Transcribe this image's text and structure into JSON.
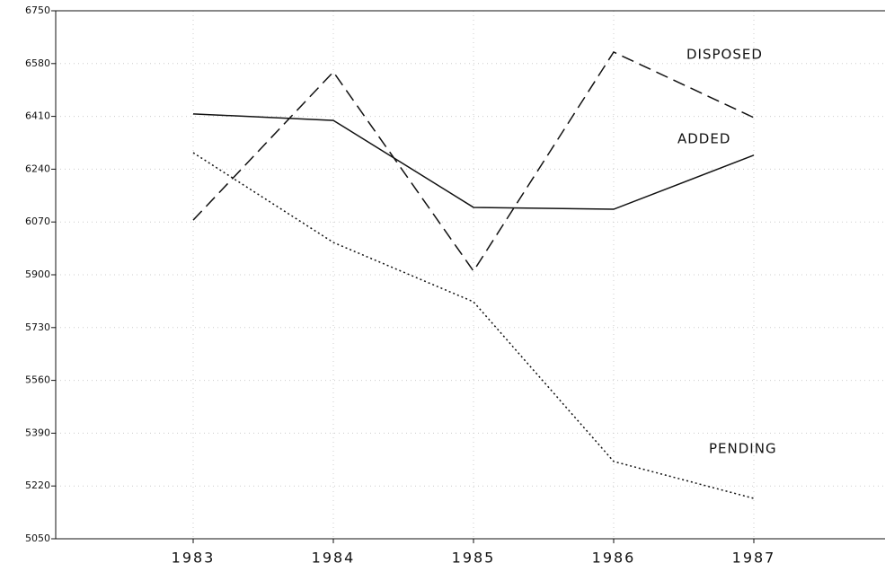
{
  "chart_data": {
    "type": "line",
    "categories": [
      "1983",
      "1984",
      "1985",
      "1986",
      "1987"
    ],
    "series": [
      {
        "name": "DISPOSED",
        "color": "#111111",
        "style": "dashed",
        "values": [
          6076,
          6553,
          5912,
          6617,
          6406
        ]
      },
      {
        "name": "ADDED",
        "color": "#111111",
        "style": "solid",
        "values": [
          6418,
          6397,
          6117,
          6111,
          6285
        ]
      },
      {
        "name": "PENDING",
        "color": "#111111",
        "style": "dotted",
        "values": [
          6293,
          6004,
          5813,
          5299,
          5180
        ]
      }
    ],
    "ylim": [
      5050,
      6750
    ],
    "yticks": [
      5050,
      5220,
      5390,
      5560,
      5730,
      5900,
      6070,
      6240,
      6410,
      6580,
      6750
    ],
    "grid": true
  }
}
